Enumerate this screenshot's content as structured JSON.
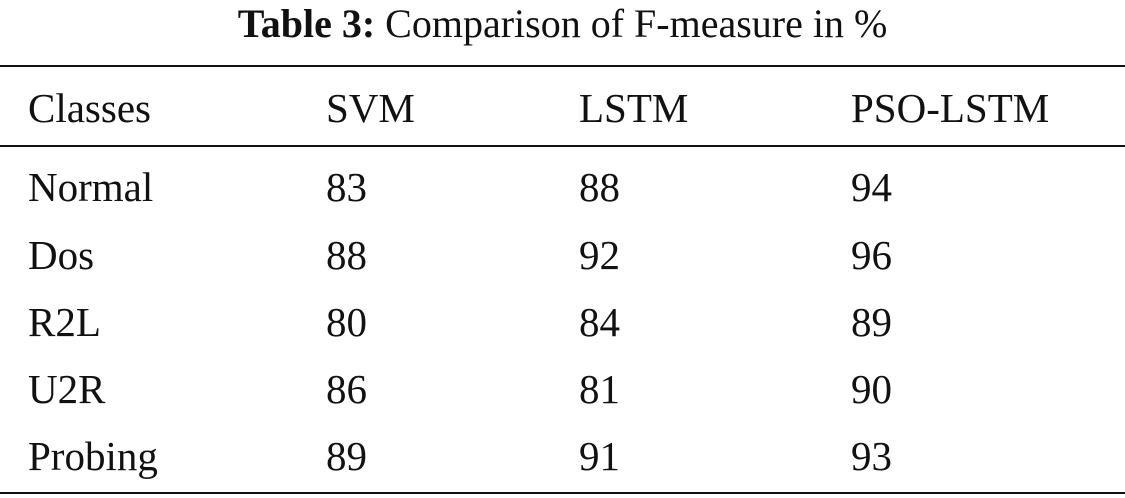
{
  "caption": {
    "label": "Table 3:",
    "text": "Comparison of F-measure in %"
  },
  "table": {
    "columns": [
      "Classes",
      "SVM",
      "LSTM",
      "PSO-LSTM"
    ],
    "rows": [
      [
        "Normal",
        "83",
        "88",
        "94"
      ],
      [
        "Dos",
        "88",
        "92",
        "96"
      ],
      [
        "R2L",
        "80",
        "84",
        "89"
      ],
      [
        "U2R",
        "86",
        "81",
        "90"
      ],
      [
        "Probing",
        "89",
        "91",
        "93"
      ]
    ]
  }
}
